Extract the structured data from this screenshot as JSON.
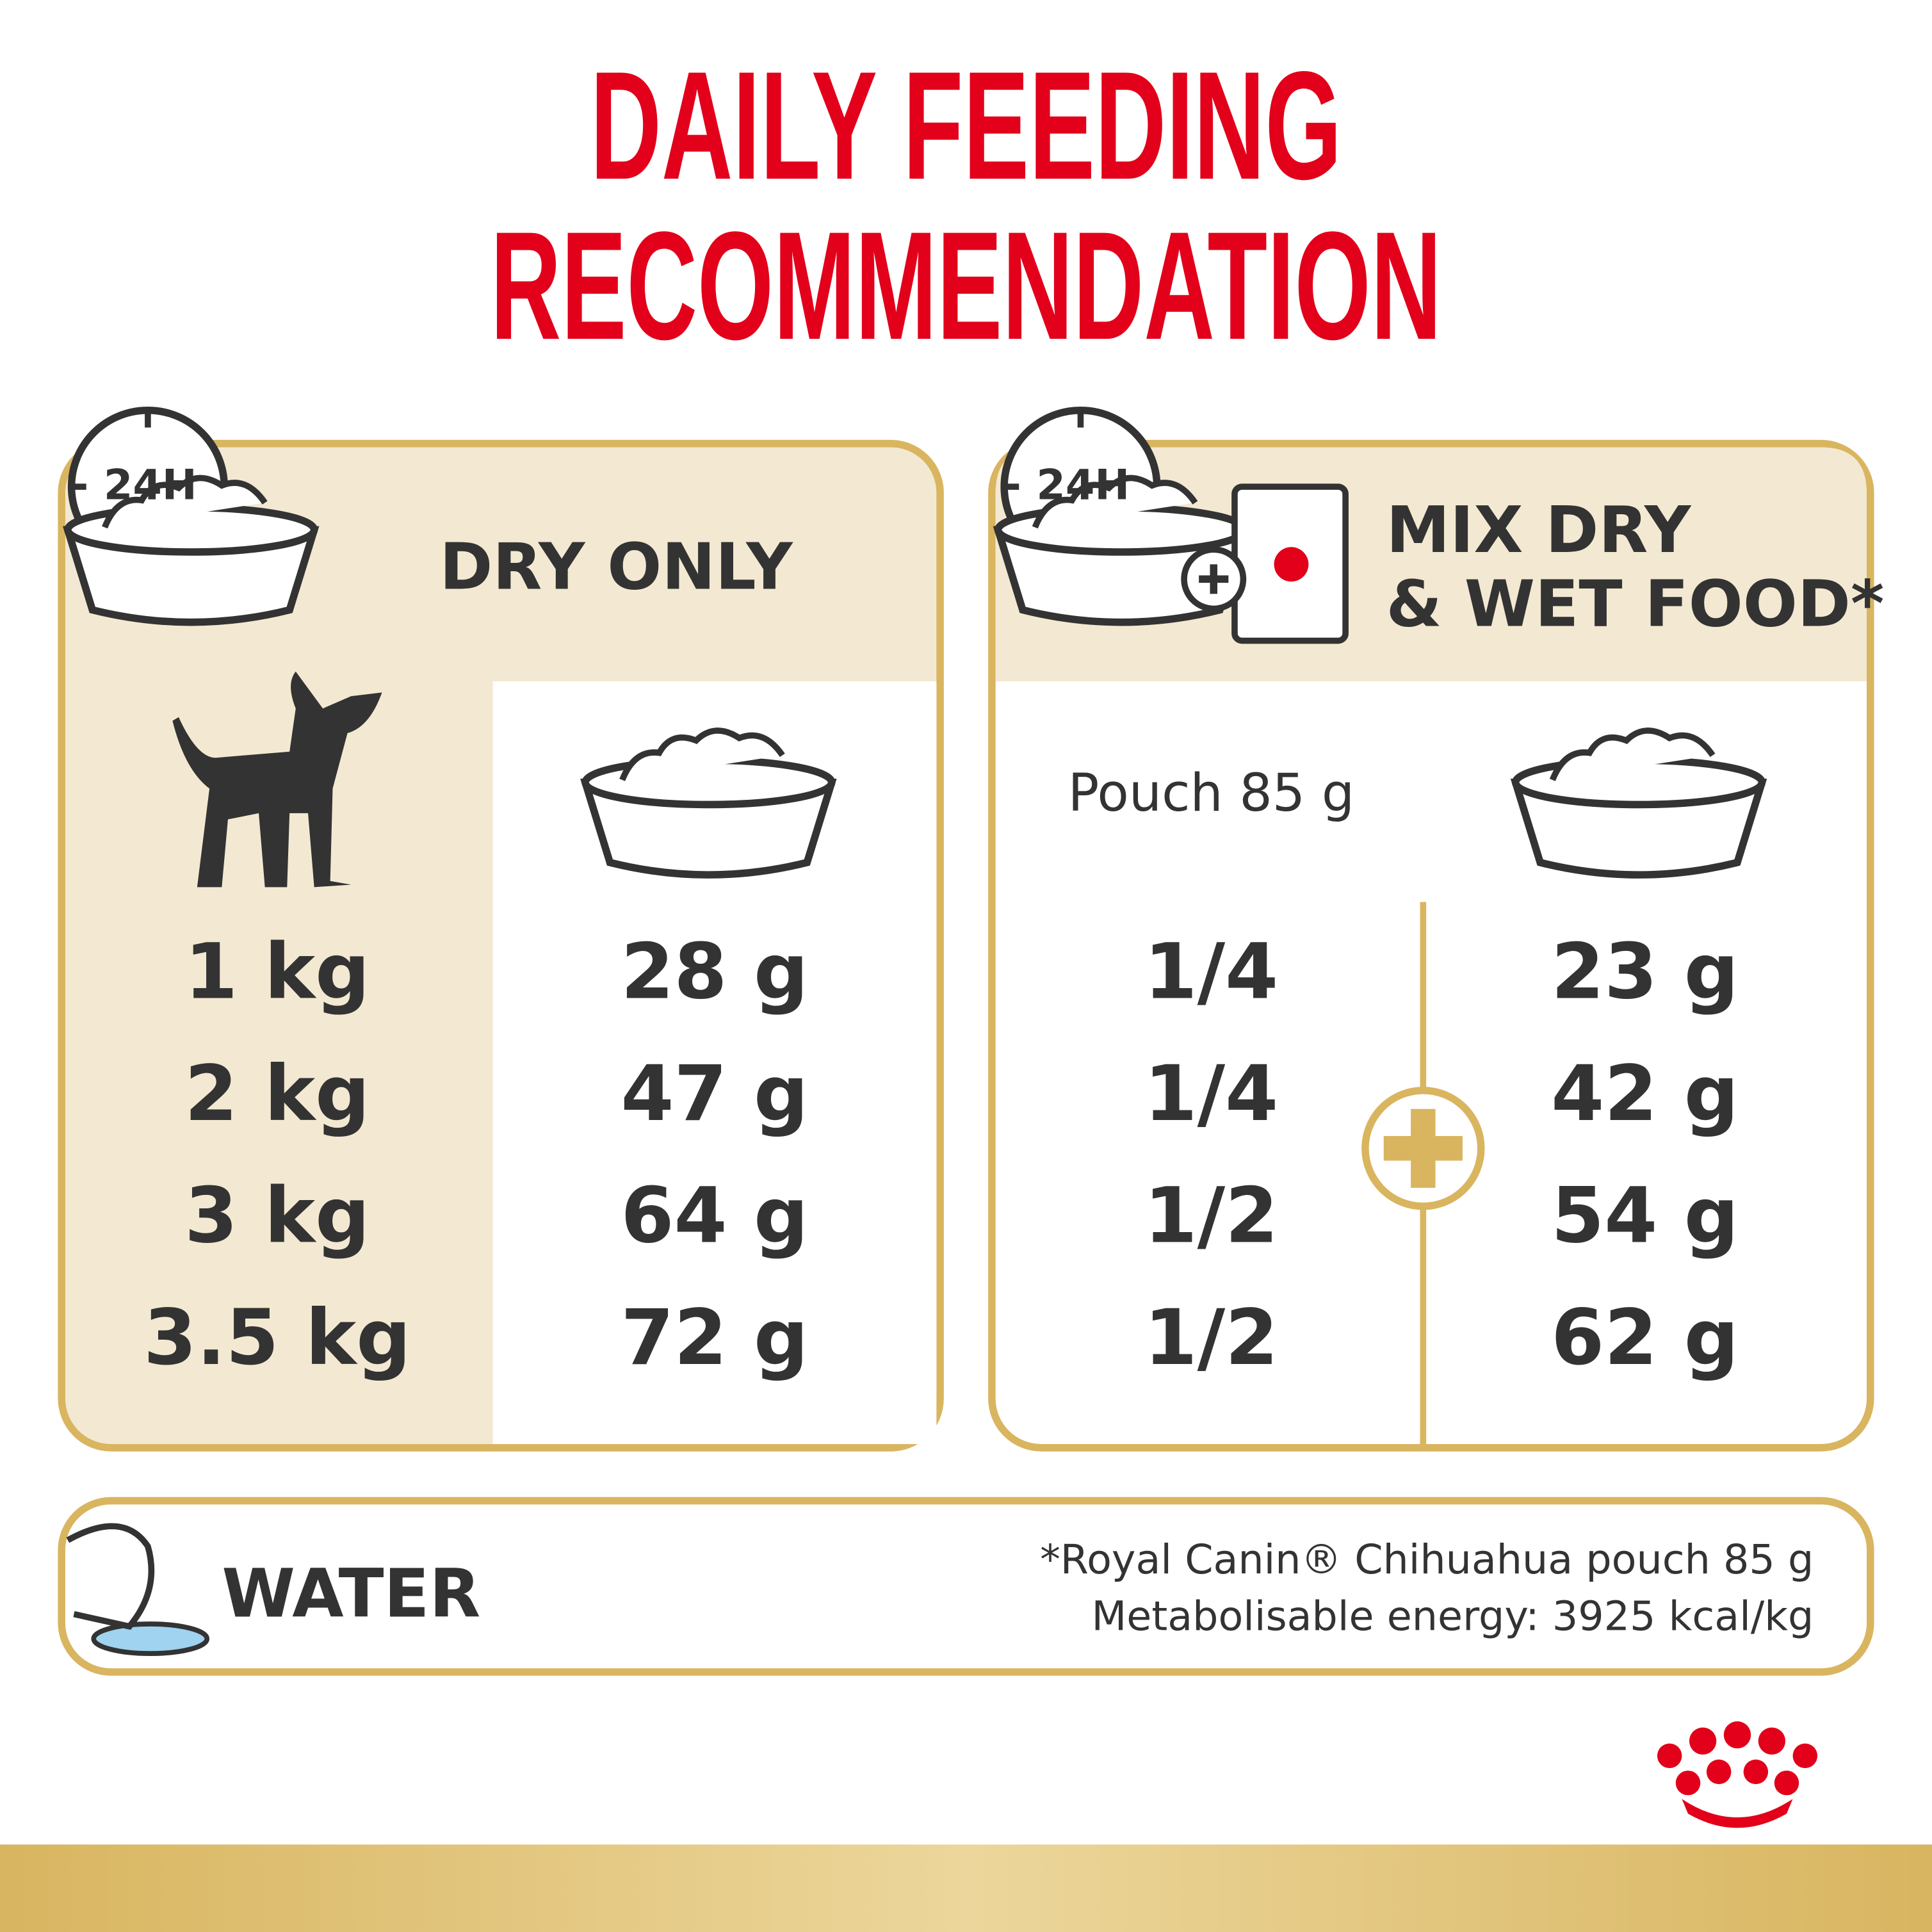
{
  "title": [
    "DAILY FEEDING",
    "RECOMMENDATION"
  ],
  "dry_only": {
    "badge": "24H",
    "heading": "DRY ONLY",
    "rows": [
      {
        "weight": "1 kg",
        "amount": "28 g"
      },
      {
        "weight": "2 kg",
        "amount": "47 g"
      },
      {
        "weight": "3 kg",
        "amount": "64 g"
      },
      {
        "weight": "3.5 kg",
        "amount": "72 g"
      }
    ]
  },
  "mix": {
    "badge": "24H",
    "heading": [
      "MIX DRY",
      "& WET FOOD*"
    ],
    "pouch_header": "Pouch 85 g",
    "rows": [
      {
        "pouch": "1/4",
        "dry": "23 g"
      },
      {
        "pouch": "1/4",
        "dry": "42 g"
      },
      {
        "pouch": "1/2",
        "dry": "54 g"
      },
      {
        "pouch": "1/2",
        "dry": "62 g"
      }
    ]
  },
  "water": "WATER",
  "footnote": [
    "*Royal Canin® Chihuahua pouch 85 g",
    "Metabolisable energy: 3925 kcal/kg"
  ]
}
